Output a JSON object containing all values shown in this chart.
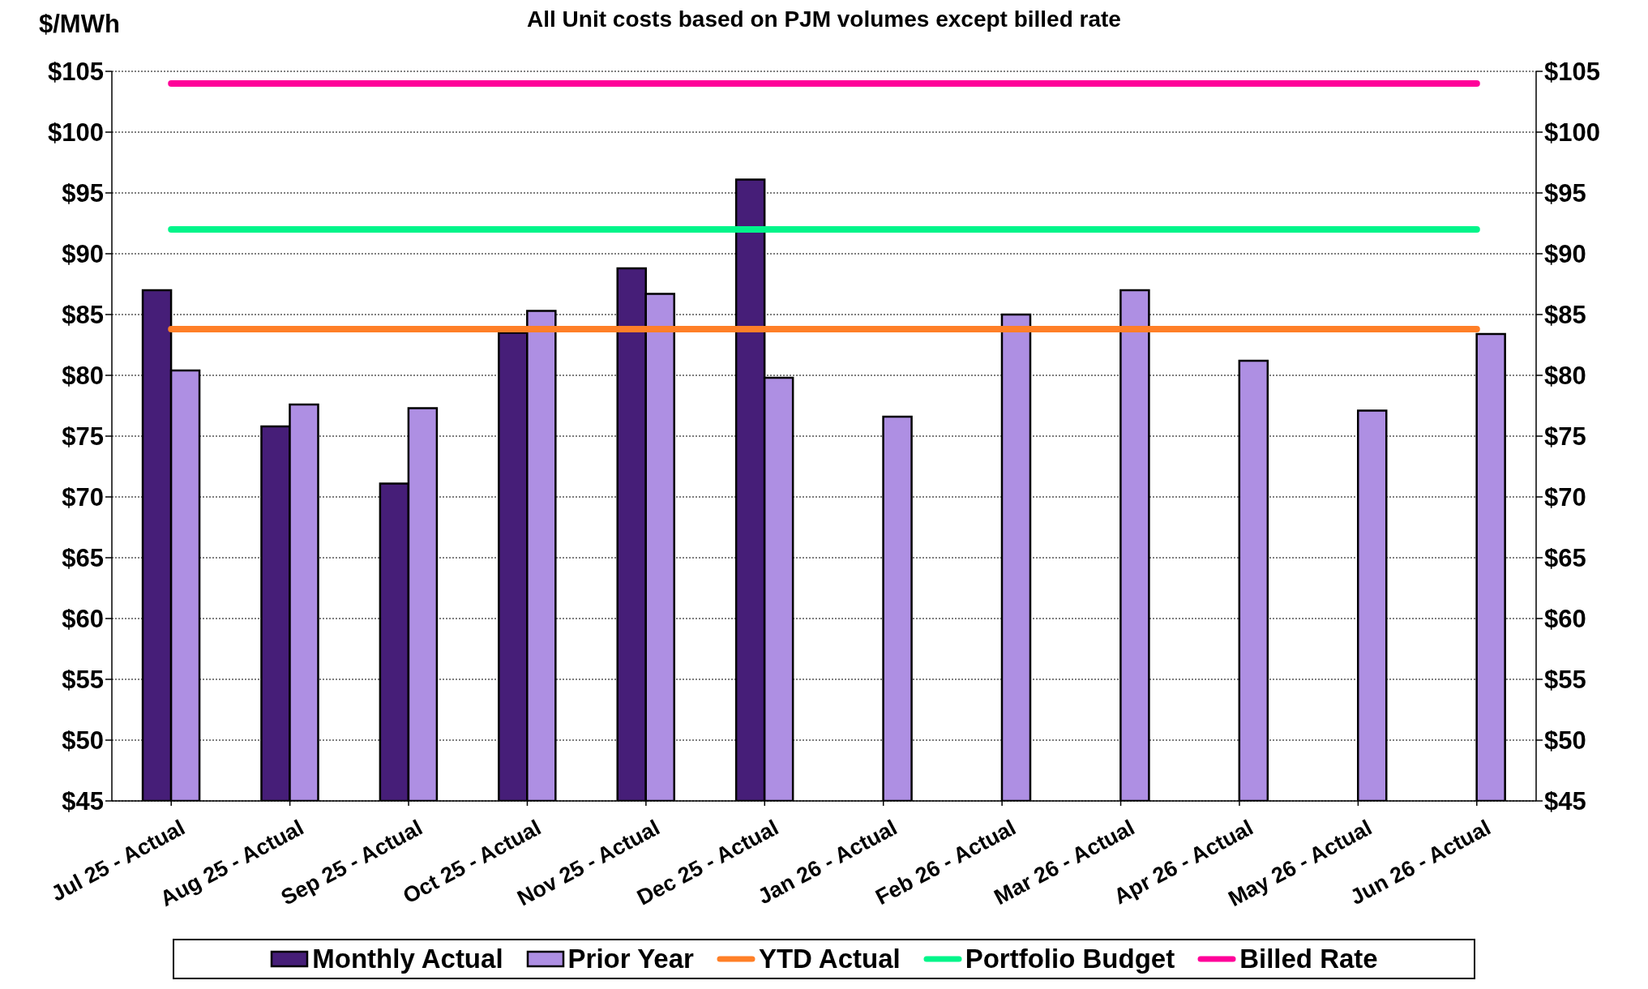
{
  "chart_data": {
    "type": "bar",
    "title": "All Unit costs based on PJM volumes except billed rate",
    "ylabel": "$/MWh",
    "categories": [
      "Jul 25 - Actual",
      "Aug 25 - Actual",
      "Sep 25 - Actual",
      "Oct 25 - Actual",
      "Nov 25 - Actual",
      "Dec 25 - Actual",
      "Jan 26 - Actual",
      "Feb 26 - Actual",
      "Mar 26 - Actual",
      "Apr 26 - Actual",
      "May 26 - Actual",
      "Jun 26 - Actual"
    ],
    "series": [
      {
        "name": "Monthly Actual",
        "color": "#461e78",
        "values": [
          87.0,
          75.8,
          71.1,
          83.5,
          88.8,
          96.1,
          null,
          null,
          null,
          null,
          null,
          null
        ]
      },
      {
        "name": "Prior Year",
        "color": "#ae8fe3",
        "values": [
          80.4,
          77.6,
          77.3,
          85.3,
          86.7,
          79.8,
          76.6,
          85.0,
          87.0,
          81.2,
          77.1,
          83.4
        ]
      },
      {
        "name": "YTD Actual",
        "type": "line",
        "color": "#ff7f27",
        "values": [
          83.8,
          83.8,
          83.8,
          83.8,
          83.8,
          83.8,
          83.8,
          83.8,
          83.8,
          83.8,
          83.8,
          83.8
        ]
      },
      {
        "name": "Portfolio Budget",
        "type": "line",
        "color": "#00f58a",
        "values": [
          92.0,
          92.0,
          92.0,
          92.0,
          92.0,
          92.0,
          92.0,
          92.0,
          92.0,
          92.0,
          92.0,
          92.0
        ]
      },
      {
        "name": "Billed Rate",
        "type": "line",
        "color": "#ff0099",
        "values": [
          104.0,
          104.0,
          104.0,
          104.0,
          104.0,
          104.0,
          104.0,
          104.0,
          104.0,
          104.0,
          104.0,
          104.0
        ]
      }
    ],
    "ylim": [
      45,
      105
    ],
    "yticks": [
      {
        "value": 45,
        "label": "$45"
      },
      {
        "value": 50,
        "label": "$50"
      },
      {
        "value": 55,
        "label": "$55"
      },
      {
        "value": 60,
        "label": "$60"
      },
      {
        "value": 65,
        "label": "$65"
      },
      {
        "value": 70,
        "label": "$70"
      },
      {
        "value": 75,
        "label": "$75"
      },
      {
        "value": 80,
        "label": "$80"
      },
      {
        "value": 85,
        "label": "$85"
      },
      {
        "value": 90,
        "label": "$90"
      },
      {
        "value": 95,
        "label": "$95"
      },
      {
        "value": 100,
        "label": "$100"
      },
      {
        "value": 105,
        "label": "$105"
      }
    ],
    "y2lim": [
      45,
      105
    ],
    "y2ticks": [
      {
        "value": 45,
        "label": "$45"
      },
      {
        "value": 50,
        "label": "$50"
      },
      {
        "value": 55,
        "label": "$55"
      },
      {
        "value": 60,
        "label": "$60"
      },
      {
        "value": 65,
        "label": "$65"
      },
      {
        "value": 70,
        "label": "$70"
      },
      {
        "value": 75,
        "label": "$75"
      },
      {
        "value": 80,
        "label": "$80"
      },
      {
        "value": 85,
        "label": "$85"
      },
      {
        "value": 90,
        "label": "$90"
      },
      {
        "value": 95,
        "label": "$95"
      },
      {
        "value": 100,
        "label": "$100"
      },
      {
        "value": 105,
        "label": "$105"
      }
    ],
    "grid": "y",
    "legend": "bottom",
    "marker": "none"
  }
}
